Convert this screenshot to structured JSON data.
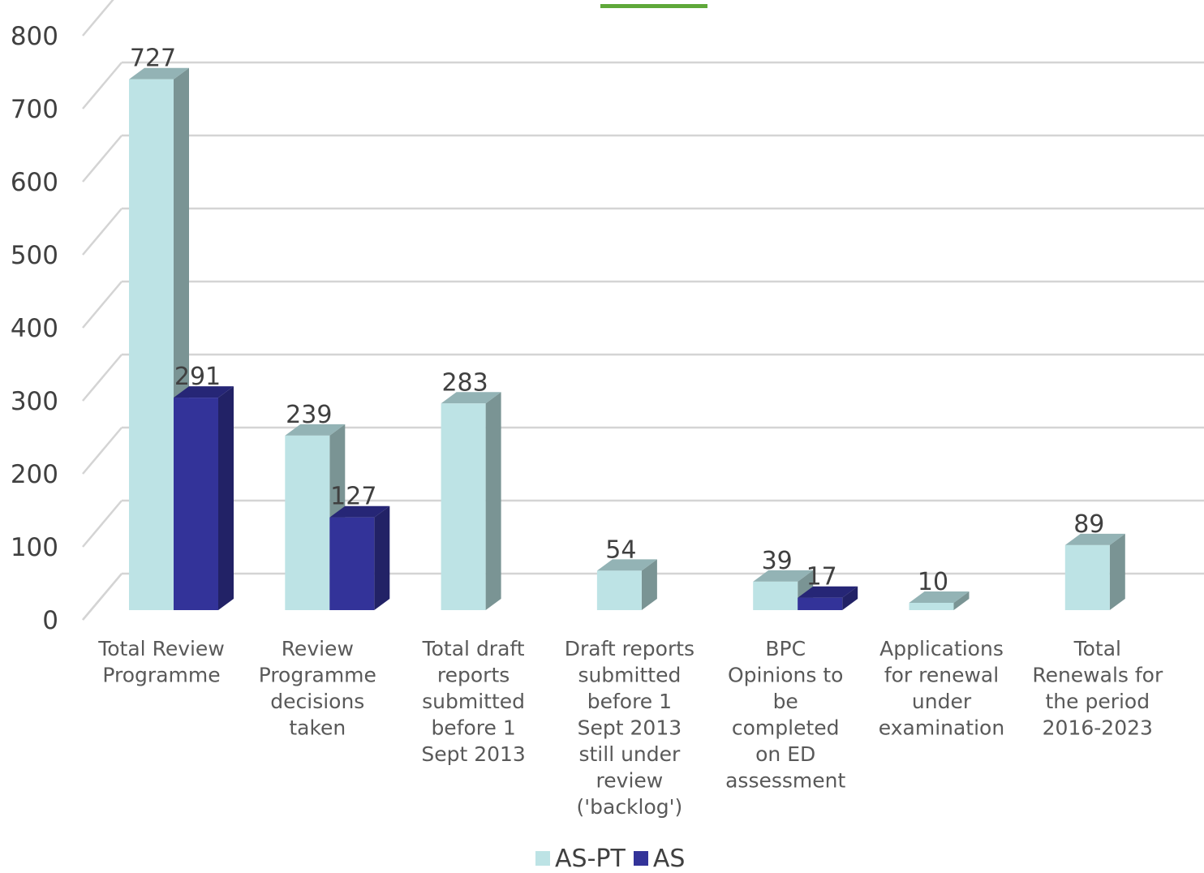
{
  "chart_data": {
    "type": "bar",
    "categories": [
      [
        "Total Review",
        "Programme"
      ],
      [
        "Review",
        "Programme",
        "decisions",
        "taken"
      ],
      [
        "Total draft",
        "reports",
        "submitted",
        "before 1",
        "Sept 2013"
      ],
      [
        "Draft reports",
        "submitted",
        "before 1",
        "Sept 2013",
        "still under",
        "review",
        "('backlog')"
      ],
      [
        "BPC",
        "Opinions to",
        "be",
        "completed",
        "on ED",
        "assessment"
      ],
      [
        "Applications",
        "for renewal",
        "under",
        "examination"
      ],
      [
        "Total",
        "Renewals for",
        "the period",
        "2016-2023"
      ]
    ],
    "series": [
      {
        "name": "AS-PT",
        "color": "#bde3e5",
        "side_color": "#7a9494",
        "top_color": "#93b3b5",
        "values": [
          727,
          239,
          283,
          54,
          39,
          10,
          89
        ]
      },
      {
        "name": "AS",
        "color": "#333399",
        "side_color": "#222266",
        "top_color": "#262676",
        "values": [
          291,
          127,
          null,
          null,
          17,
          null,
          null
        ]
      }
    ],
    "y_ticks": [
      "0",
      "100",
      "200",
      "300",
      "400",
      "500",
      "600",
      "700",
      "800"
    ],
    "ylim": [
      0,
      800
    ],
    "grid": true,
    "legend_position": "bottom",
    "three_d": true
  }
}
